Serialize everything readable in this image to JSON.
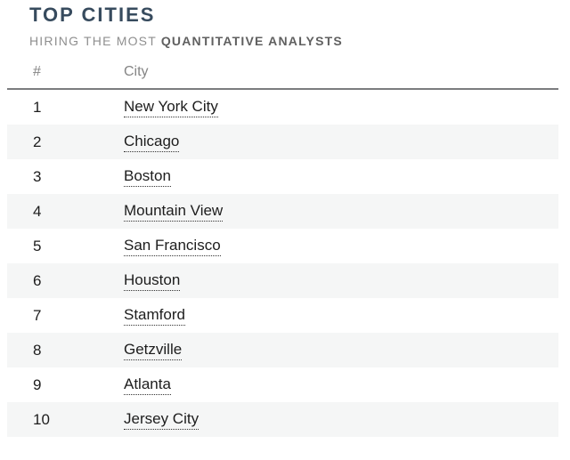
{
  "header": {
    "title": "TOP CITIES",
    "subtitle_prefix": "HIRING THE MOST",
    "subtitle_emphasis": "QUANTITATIVE ANALYSTS"
  },
  "table": {
    "columns": [
      {
        "key": "rank",
        "label": "#"
      },
      {
        "key": "city",
        "label": "City"
      }
    ],
    "rows": [
      {
        "rank": "1",
        "city": "New York City"
      },
      {
        "rank": "2",
        "city": "Chicago"
      },
      {
        "rank": "3",
        "city": "Boston"
      },
      {
        "rank": "4",
        "city": "Mountain View"
      },
      {
        "rank": "5",
        "city": "San Francisco"
      },
      {
        "rank": "6",
        "city": "Houston"
      },
      {
        "rank": "7",
        "city": "Stamford"
      },
      {
        "rank": "8",
        "city": "Getzville"
      },
      {
        "rank": "9",
        "city": "Atlanta"
      },
      {
        "rank": "10",
        "city": "Jersey City"
      }
    ]
  },
  "colors": {
    "title_text": "#374b5e",
    "subtitle_text": "#8f8f8f",
    "subtitle_emphasis_text": "#606060",
    "header_text": "#858585",
    "header_border": "#7b7c7e",
    "row_text": "#1d1d1d",
    "alt_row_background": "#f5f6f6",
    "page_background": "#ffffff"
  }
}
